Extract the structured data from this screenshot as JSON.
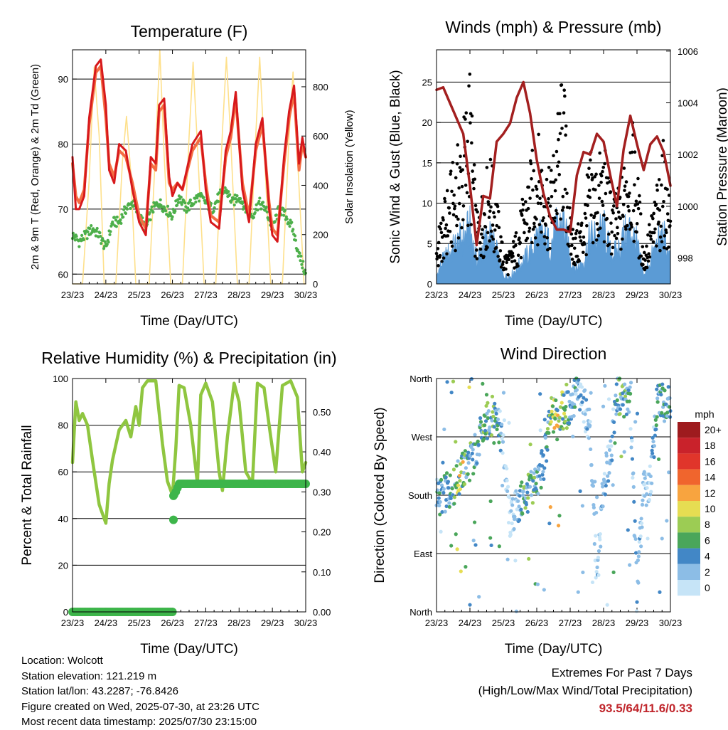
{
  "chart_data": [
    {
      "type": "line",
      "title": "Temperature (F)",
      "xlabel": "Time (Day/UTC)",
      "ylabel": "2m & 9m T (Red, Orange) & 2m Td (Green)",
      "y2label": "Solar Insolation (Yellow)",
      "x_ticks": [
        "23/23",
        "24/23",
        "25/23",
        "26/23",
        "27/23",
        "28/23",
        "29/23",
        "30/23"
      ],
      "y_ticks": [
        60,
        70,
        80,
        90
      ],
      "y2_ticks": [
        0,
        200,
        400,
        600,
        800
      ],
      "ylim": [
        58.5,
        94.5
      ],
      "y2lim": [
        0,
        950
      ],
      "colors": {
        "t2m": "#d7191c",
        "t9m": "#f46d43",
        "td": "#4daf4a",
        "solar": "#fee08b"
      },
      "series": [
        {
          "name": "2m T",
          "x": [
            0,
            0.1,
            0.2,
            0.35,
            0.5,
            0.7,
            0.85,
            1.0,
            1.1,
            1.25,
            1.4,
            1.6,
            1.8,
            2.0,
            2.2,
            2.35,
            2.5,
            2.6,
            2.75,
            2.9,
            3.0,
            3.15,
            3.3,
            3.6,
            3.85,
            4.0,
            4.15,
            4.4,
            4.6,
            4.75,
            4.9,
            5.1,
            5.3,
            5.5,
            5.7,
            5.9,
            6.0,
            6.15,
            6.35,
            6.5,
            6.65,
            6.8,
            6.9,
            7.0
          ],
          "values": [
            78,
            70,
            70,
            72,
            84,
            92,
            93,
            86,
            76,
            74,
            80,
            79,
            73,
            68,
            66,
            78,
            77,
            86,
            87,
            75,
            72,
            74,
            73,
            80,
            82,
            73,
            68,
            67,
            79,
            82,
            88,
            73,
            68,
            80,
            84,
            70,
            66,
            65,
            78,
            85,
            89,
            77,
            81,
            78
          ]
        },
        {
          "name": "9m T",
          "x": [
            0,
            0.1,
            0.2,
            0.35,
            0.5,
            0.7,
            0.85,
            1.0,
            1.1,
            1.25,
            1.4,
            1.6,
            1.8,
            2.0,
            2.2,
            2.35,
            2.5,
            2.6,
            2.75,
            2.9,
            3.0,
            3.15,
            3.3,
            3.6,
            3.85,
            4.0,
            4.15,
            4.4,
            4.6,
            4.75,
            4.9,
            5.1,
            5.3,
            5.5,
            5.7,
            5.9,
            6.0,
            6.15,
            6.35,
            6.5,
            6.65,
            6.8,
            6.9,
            7.0
          ],
          "values": [
            77,
            72,
            71,
            73,
            83,
            91,
            92,
            84,
            77,
            75,
            79,
            78,
            74,
            69,
            67,
            77,
            76,
            85,
            86,
            74,
            73,
            74,
            73,
            79,
            81,
            74,
            69,
            68,
            78,
            81,
            87,
            74,
            69,
            79,
            83,
            71,
            67,
            66,
            77,
            84,
            88,
            76,
            80,
            78
          ]
        },
        {
          "name": "2m Td",
          "x": [
            0,
            0.2,
            0.4,
            0.6,
            0.8,
            1.0,
            1.2,
            1.4,
            1.6,
            1.8,
            2.0,
            2.2,
            2.4,
            2.6,
            2.8,
            3.0,
            3.2,
            3.4,
            3.6,
            3.8,
            4.0,
            4.2,
            4.4,
            4.6,
            4.8,
            5.0,
            5.2,
            5.4,
            5.6,
            5.8,
            6.0,
            6.2,
            6.4,
            6.6,
            6.8,
            7.0
          ],
          "values": [
            66,
            65,
            66,
            67,
            66,
            64,
            68,
            68,
            70,
            71,
            69,
            67,
            70,
            71,
            70,
            69,
            72,
            70,
            71,
            72,
            71,
            70,
            72,
            73,
            71,
            72,
            70,
            69,
            71,
            70,
            67,
            70,
            69,
            67,
            63,
            60
          ]
        },
        {
          "name": "Solar Insolation",
          "axis": "y2",
          "x": [
            0,
            0.3,
            0.5,
            0.65,
            0.8,
            0.95,
            1.3,
            1.5,
            1.62,
            1.75,
            1.9,
            2.3,
            2.5,
            2.62,
            2.75,
            2.95,
            3.3,
            3.5,
            3.62,
            3.75,
            3.95,
            4.3,
            4.5,
            4.62,
            4.75,
            4.95,
            5.3,
            5.5,
            5.62,
            5.75,
            5.95,
            6.3,
            6.5,
            6.62,
            6.75,
            6.95,
            7.0
          ],
          "values": [
            0,
            0,
            420,
            880,
            600,
            0,
            0,
            500,
            680,
            450,
            0,
            0,
            560,
            950,
            520,
            0,
            0,
            600,
            900,
            560,
            0,
            0,
            620,
            920,
            580,
            0,
            0,
            600,
            920,
            560,
            0,
            0,
            600,
            860,
            520,
            0,
            0
          ]
        }
      ]
    },
    {
      "type": "scatter",
      "title": "Winds (mph) & Pressure (mb)",
      "xlabel": "Time (Day/UTC)",
      "ylabel": "Sonic Wind & Gust (Blue, Black)",
      "y2label": "Station Pressure (Maroon)",
      "x_ticks": [
        "23/23",
        "24/23",
        "25/23",
        "26/23",
        "27/23",
        "28/23",
        "29/23",
        "30/23"
      ],
      "y_ticks": [
        0,
        5,
        10,
        15,
        20,
        25
      ],
      "y2_ticks": [
        998,
        1000,
        1002,
        1004,
        1006
      ],
      "ylim": [
        0,
        29
      ],
      "y2lim": [
        997.0,
        1006.05
      ],
      "colors": {
        "wind": "#5b9bd5",
        "gust": "#000000",
        "pressure": "#a31f1f"
      },
      "series": [
        {
          "name": "Pressure",
          "axis": "y2",
          "x": [
            0,
            0.2,
            0.4,
            0.6,
            0.8,
            1.0,
            1.2,
            1.4,
            1.6,
            1.8,
            2.0,
            2.2,
            2.4,
            2.6,
            2.8,
            3.0,
            3.2,
            3.4,
            3.6,
            3.8,
            4.0,
            4.2,
            4.4,
            4.6,
            4.8,
            5.0,
            5.2,
            5.4,
            5.6,
            5.8,
            6.0,
            6.2,
            6.4,
            6.6,
            6.8,
            7.0
          ],
          "values": [
            1004.5,
            1004.6,
            1004.0,
            1003.4,
            1002.8,
            1000.8,
            998.5,
            1000.4,
            1000.3,
            1002.5,
            1002.8,
            1003.2,
            1004.2,
            1004.8,
            1003.6,
            1001.8,
            1000.5,
            999.6,
            999.1,
            999.1,
            999.0,
            1001.2,
            1002.1,
            1002.0,
            1002.8,
            1002.5,
            1001.2,
            1000.0,
            1002.2,
            1003.5,
            1002.4,
            1001.4,
            1002.4,
            1002.7,
            1002.1,
            1000.8
          ]
        },
        {
          "name": "Sonic Wind",
          "x": [
            0,
            0.2,
            0.4,
            0.6,
            0.8,
            1.0,
            1.2,
            1.4,
            1.6,
            1.8,
            2.0,
            2.2,
            2.4,
            2.6,
            2.8,
            3.0,
            3.2,
            3.4,
            3.6,
            3.8,
            4.0,
            4.2,
            4.4,
            4.6,
            4.8,
            5.0,
            5.2,
            5.4,
            5.6,
            5.8,
            6.0,
            6.2,
            6.4,
            6.6,
            6.8,
            7.0
          ],
          "values": [
            1,
            3,
            4,
            5,
            6,
            7,
            3,
            5,
            6,
            4,
            1,
            1,
            2,
            3,
            4,
            6,
            6,
            5,
            7,
            8,
            3,
            2,
            3,
            6,
            6,
            7,
            4,
            4,
            6,
            7,
            5,
            1,
            3,
            5,
            6,
            3
          ]
        },
        {
          "name": "Gust",
          "x": [
            0,
            0.2,
            0.4,
            0.6,
            0.8,
            1.0,
            1.2,
            1.4,
            1.6,
            1.8,
            2.0,
            2.2,
            2.4,
            2.6,
            2.8,
            3.0,
            3.2,
            3.4,
            3.6,
            3.8,
            4.0,
            4.2,
            4.4,
            4.6,
            4.8,
            5.0,
            5.2,
            5.4,
            5.6,
            5.8,
            6.0,
            6.2,
            6.4,
            6.6,
            6.8,
            7.0
          ],
          "values": [
            4,
            7,
            10,
            12,
            15,
            20,
            6,
            9,
            12,
            8,
            3,
            3,
            5,
            8,
            11,
            14,
            12,
            10,
            15,
            20,
            6,
            5,
            7,
            12,
            11,
            13,
            9,
            8,
            11,
            16,
            11,
            3,
            6,
            9,
            13,
            7
          ]
        }
      ]
    },
    {
      "type": "line",
      "title": "Relative Humidity (%) & Precipitation (in)",
      "xlabel": "Time (Day/UTC)",
      "ylabel": "Percent & Total Rainfall",
      "x_ticks": [
        "23/23",
        "24/23",
        "25/23",
        "26/23",
        "27/23",
        "28/23",
        "29/23",
        "30/23"
      ],
      "y_ticks": [
        0,
        20,
        40,
        60,
        80,
        100
      ],
      "y2_ticks": [
        "0.00",
        "0.10",
        "0.20",
        "0.30",
        "0.40",
        "0.50"
      ],
      "ylim": [
        0,
        100
      ],
      "y2lim": [
        0,
        0.5833
      ],
      "colors": {
        "rh": "#8fc640",
        "precip": "#3db54a"
      },
      "series": [
        {
          "name": "RH",
          "x": [
            0,
            0.1,
            0.2,
            0.3,
            0.45,
            0.6,
            0.8,
            1.0,
            1.1,
            1.2,
            1.4,
            1.6,
            1.75,
            1.9,
            2.0,
            2.1,
            2.25,
            2.5,
            2.7,
            2.85,
            3.0,
            3.1,
            3.2,
            3.35,
            3.55,
            3.75,
            3.85,
            4.0,
            4.2,
            4.4,
            4.5,
            4.65,
            4.85,
            5.0,
            5.2,
            5.4,
            5.55,
            5.75,
            5.95,
            6.1,
            6.3,
            6.55,
            6.75,
            6.9,
            7.0
          ],
          "values": [
            64,
            90,
            82,
            85,
            80,
            65,
            46,
            38,
            55,
            65,
            78,
            82,
            75,
            88,
            80,
            96,
            99,
            99,
            72,
            56,
            50,
            70,
            97,
            96,
            80,
            55,
            93,
            98,
            90,
            60,
            52,
            75,
            98,
            90,
            60,
            55,
            98,
            96,
            75,
            60,
            97,
            99,
            92,
            60,
            64
          ]
        },
        {
          "name": "Precipitation",
          "axis": "y2",
          "x": [
            0,
            2.95,
            3.0,
            3.02,
            3.03,
            3.1,
            3.2,
            7.0
          ],
          "values": [
            0,
            0,
            0,
            0.23,
            0.29,
            0.3,
            0.32,
            0.32
          ]
        }
      ]
    },
    {
      "type": "scatter",
      "title": "Wind Direction",
      "xlabel": "Time (Day/UTC)",
      "ylabel": "Direction (Colored By Speed)",
      "x_ticks": [
        "23/23",
        "24/23",
        "25/23",
        "26/23",
        "27/23",
        "28/23",
        "29/23",
        "30/23"
      ],
      "y_ticks": [
        "North",
        "East",
        "South",
        "West",
        "North"
      ],
      "ylim": [
        0,
        360
      ],
      "colorbar": {
        "title": "mph",
        "labels": [
          "20+",
          "18",
          "16",
          "14",
          "12",
          "10",
          "8",
          "6",
          "4",
          "2",
          "0"
        ],
        "colors": [
          "#9e1b1e",
          "#c9222b",
          "#e0352b",
          "#f0652d",
          "#f8a43f",
          "#e6dd52",
          "#9ccc54",
          "#4aa65a",
          "#4287c6",
          "#8cbde6",
          "#c6e4f7"
        ]
      },
      "series": [
        {
          "name": "Direction",
          "x": [
            0.1,
            0.3,
            0.5,
            0.7,
            0.8,
            1.0,
            1.2,
            1.4,
            1.6,
            1.8,
            2.0,
            2.2,
            2.4,
            2.6,
            2.8,
            3.0,
            3.2,
            3.4,
            3.6,
            3.8,
            4.0,
            4.2,
            4.4,
            4.6,
            4.8,
            5.0,
            5.2,
            5.4,
            5.6,
            5.8,
            6.0,
            6.2,
            6.4,
            6.6,
            6.8
          ],
          "values": [
            178,
            184,
            190,
            210,
            218,
            232,
            255,
            282,
            300,
            310,
            250,
            140,
            160,
            175,
            185,
            205,
            225,
            300,
            305,
            310,
            315,
            340,
            320,
            280,
            40,
            200,
            240,
            335,
            330,
            320,
            30,
            190,
            200,
            320,
            330
          ],
          "speeds": [
            5,
            6,
            7,
            10,
            11,
            8,
            5,
            7,
            8,
            7,
            3,
            2,
            3,
            7,
            8,
            6,
            4,
            10,
            11,
            9,
            6,
            5,
            4,
            3,
            3,
            4,
            3,
            7,
            8,
            5,
            4,
            3,
            3,
            6,
            6
          ]
        }
      ]
    }
  ],
  "info": {
    "location": "Location: Wolcott",
    "elevation": "Station elevation: 121.219 m",
    "latlon": "Station lat/lon: 43.2287; -76.8426",
    "created": "Figure created on Wed, 2025-07-30, at 23:26 UTC",
    "recent": "Most recent data timestamp: 2025/07/30 23:15:00"
  },
  "extremes": {
    "line1": "Extremes For Past 7 Days",
    "line2": "(High/Low/Max Wind/Total Precipitation)",
    "values": "93.5/64/11.6/0.33"
  }
}
